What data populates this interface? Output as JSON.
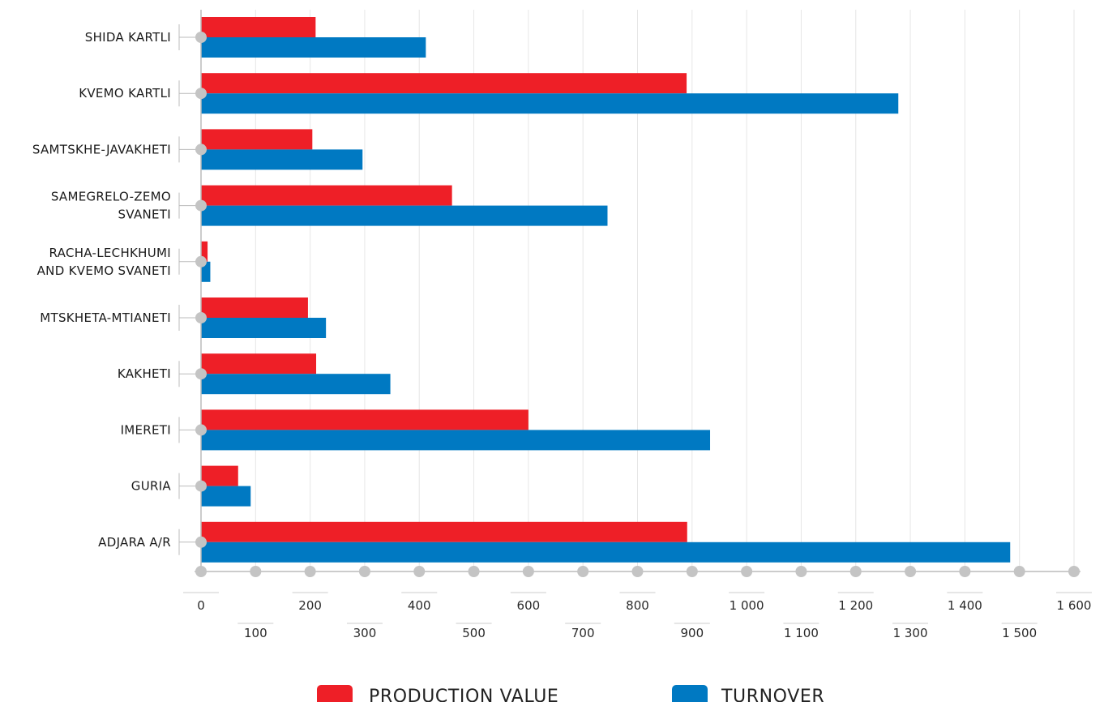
{
  "chart_data": {
    "type": "bar",
    "orientation": "horizontal",
    "categories": [
      [
        "SHIDA KARTLI"
      ],
      [
        "KVEMO KARTLI"
      ],
      [
        "SAMTSKHE-JAVAKHETI"
      ],
      [
        "SAMEGRELO-ZEMO",
        "SVANETI"
      ],
      [
        "RACHA-LECHKHUMI",
        "AND KVEMO SVANETI"
      ],
      [
        "MTSKHETA-MTIANETI"
      ],
      [
        "KAKHETI"
      ],
      [
        "IMERETI"
      ],
      [
        "GURIA"
      ],
      [
        "ADJARA A/R"
      ]
    ],
    "series": [
      {
        "name": "PRODUCTION VALUE",
        "color": "#ee1f27",
        "values": [
          210,
          890,
          204,
          460,
          12,
          196,
          211,
          600,
          68,
          891
        ]
      },
      {
        "name": "TURNOVER",
        "color": "#0079c2",
        "values": [
          412,
          1278,
          296,
          745,
          17,
          229,
          347,
          933,
          91,
          1483
        ]
      }
    ],
    "xlim": [
      0,
      1600
    ],
    "x_ticks": [
      "0",
      "100",
      "200",
      "300",
      "400",
      "500",
      "600",
      "700",
      "800",
      "900",
      "1 000",
      "1 100",
      "1 200",
      "1 300",
      "1 400",
      "1 500",
      "1 600"
    ],
    "grid": "vertical",
    "legend_position": "bottom-center",
    "axis_color": "#bbbbbb",
    "grid_color": "#e6e6e6",
    "marker_color": "#c4c4c4"
  }
}
